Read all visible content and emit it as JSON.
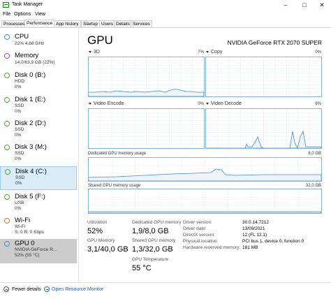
{
  "window": {
    "title": "Task Manager"
  },
  "menu": [
    "File",
    "Options",
    "View"
  ],
  "tabs": [
    "Processes",
    "Performance",
    "App history",
    "Startup",
    "Users",
    "Details",
    "Services"
  ],
  "sidebar": [
    {
      "title": "CPU",
      "sub1": "22% 4,68 GHz",
      "sub2": ""
    },
    {
      "title": "Memory",
      "sub1": "14,0/63,9 GB (22%)",
      "sub2": ""
    },
    {
      "title": "Disk 0 (B:)",
      "sub1": "HDD",
      "sub2": "0%"
    },
    {
      "title": "Disk 1 (E:)",
      "sub1": "SSD",
      "sub2": "0%"
    },
    {
      "title": "Disk 2 (D:)",
      "sub1": "SSD",
      "sub2": "0%"
    },
    {
      "title": "Disk 3 (M:)",
      "sub1": "SSD",
      "sub2": "0%"
    },
    {
      "title": "Disk 4 (C:)",
      "sub1": "SSD",
      "sub2": "0%"
    },
    {
      "title": "Disk 5 (F:)",
      "sub1": "USB",
      "sub2": "0%"
    },
    {
      "title": "Wi-Fi",
      "sub1": "Wi-Fi",
      "sub2": "S: 0 R: 0 Kbps"
    },
    {
      "title": "GPU 0",
      "sub1": "NVIDIA GeForce R...",
      "sub2": "52% (55 °C)"
    }
  ],
  "main": {
    "title": "GPU",
    "gpu_name": "NVIDIA GeForce RTX 2070 SUPER",
    "graphs": {
      "g3d": {
        "label": "3D",
        "pct": "7%"
      },
      "copy": {
        "label": "Copy",
        "pct": "0%"
      },
      "encode": {
        "label": "Video Encode",
        "pct": "0%"
      },
      "decode": {
        "label": "Video Decode",
        "pct": "6%"
      },
      "dedicated": {
        "label": "Dedicated GPU memory usage",
        "max": "8,0 GB"
      },
      "shared": {
        "label": "Shared GPU memory usage",
        "max": "32,0 GB"
      }
    },
    "stats": {
      "utilization_label": "Utilization",
      "utilization": "52%",
      "dedicated_label": "Dedicated GPU memory",
      "dedicated": "1,9/8,0 GB",
      "gpu_memory_label": "GPU Memory",
      "gpu_memory": "3,1/40,0 GB",
      "shared_label": "Shared GPU memory",
      "shared": "1,3/32,0 GB",
      "temp_label": "GPU Temperature",
      "temp": "55 °C"
    },
    "info": [
      {
        "key": "Driver version:",
        "val": "30.0.14.7212"
      },
      {
        "key": "Driver date:",
        "val": "13/09/2021"
      },
      {
        "key": "DirectX version:",
        "val": "12 (FL 12.1)"
      },
      {
        "key": "Physical location:",
        "val": "PCI bus 1, device 0, function 0"
      },
      {
        "key": "Hardware reserved memory:",
        "val": "181 MB"
      }
    ]
  },
  "footer": {
    "fewer": "Fewer details",
    "monitor": "Open Resource Monitor"
  },
  "colors": {
    "graph_line": "#3c8ec9",
    "graph_fill": "#f1f6fb",
    "grid": "#e4eef6",
    "border": "#87b4d6"
  }
}
